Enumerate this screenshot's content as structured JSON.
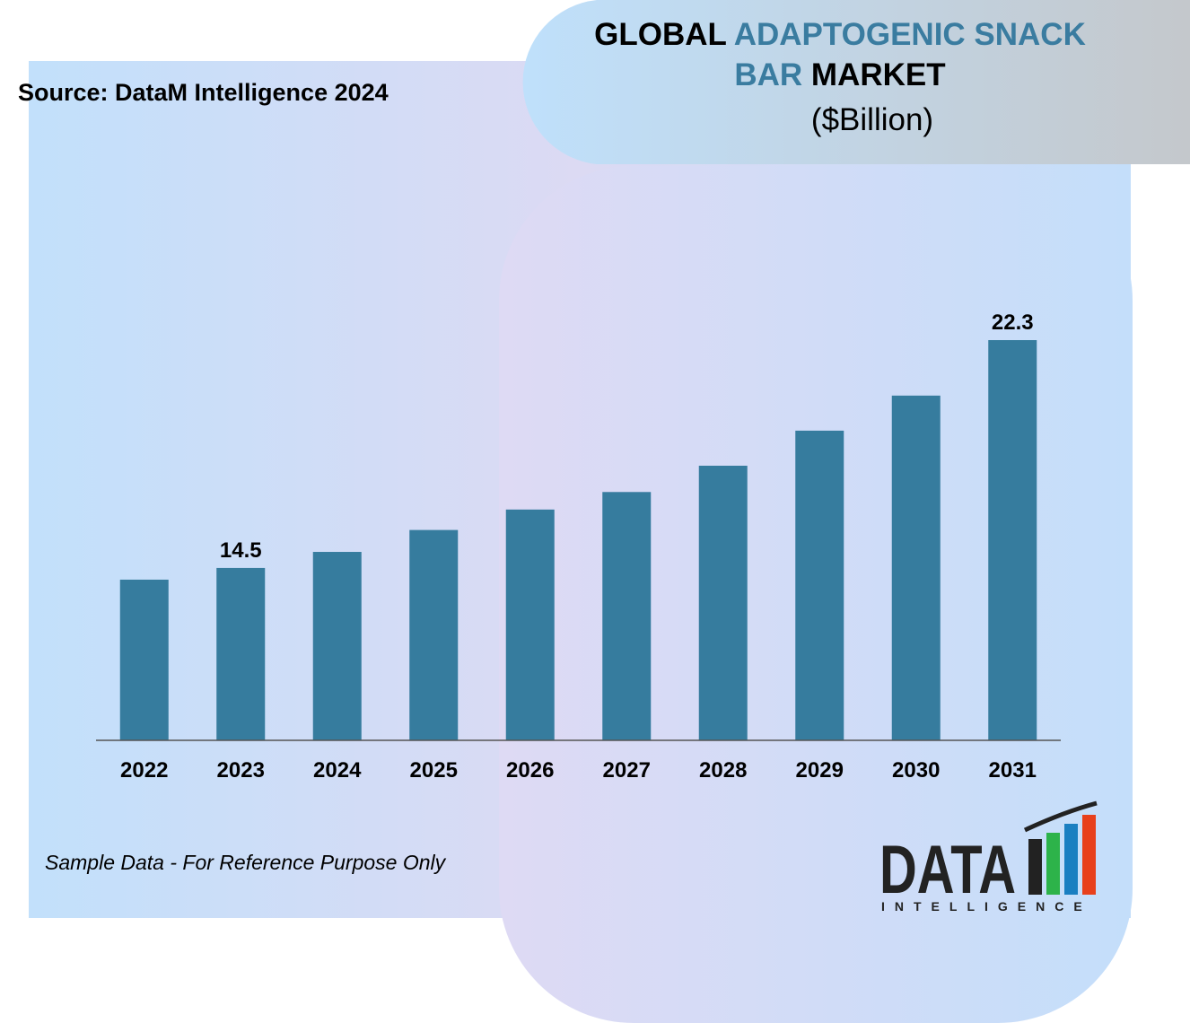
{
  "source": "Source: DataM Intelligence 2024",
  "note": "Sample Data - For Reference Purpose Only",
  "logo": {
    "word": "DATA",
    "tagline": "INTELLIGENCE"
  },
  "chart_data": {
    "type": "bar",
    "title_parts": [
      {
        "text": "GLOBAL",
        "color": "#000000"
      },
      {
        "text": "ADAPTOGENIC SNACK",
        "color": "#3a7ca0"
      },
      {
        "text": "BAR",
        "color": "#3a7ca0"
      },
      {
        "text": "MARKET",
        "color": "#000000"
      }
    ],
    "subtitle": "($Billion)",
    "categories": [
      "2022",
      "2023",
      "2024",
      "2025",
      "2026",
      "2027",
      "2028",
      "2029",
      "2030",
      "2031"
    ],
    "values": [
      14.1,
      14.5,
      15.05,
      15.8,
      16.5,
      17.1,
      18.0,
      19.2,
      20.4,
      22.3
    ],
    "value_labels": [
      null,
      "14.5",
      null,
      null,
      null,
      null,
      null,
      null,
      null,
      "22.3"
    ],
    "color": "#367c9e",
    "ylim": [
      8.6,
      22.3
    ]
  }
}
